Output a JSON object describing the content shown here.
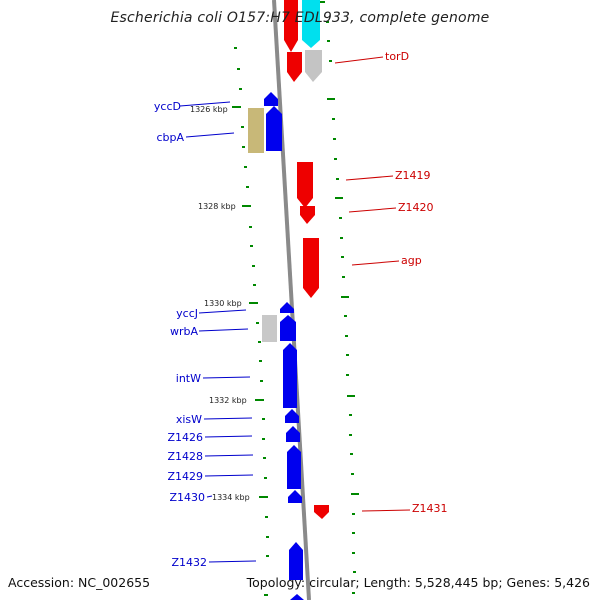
{
  "title": "Escherichia coli O157:H7 EDL933, complete genome",
  "footer": {
    "accession": "Accession: NC_002655",
    "summary": "Topology: circular; Length: 5,528,445 bp; Genes: 5,426"
  },
  "colors": {
    "forward_gene": "#0000ee",
    "reverse_gene": "#ee0000",
    "grey_gene": "#c8c8c8",
    "olive_gene": "#c8b878",
    "cyan_gene": "#00e0ee",
    "backbone": "#888888",
    "tick": "#008800",
    "left_label": "#0000cc",
    "right_label": "#cc0000"
  },
  "scale_labels": [
    "1326 kbp",
    "1328 kbp",
    "1330 kbp",
    "1332 kbp",
    "1334 kbp"
  ],
  "genes": [
    {
      "name": "torD",
      "strand": "reverse",
      "color": "grey_gene"
    },
    {
      "name": "torD",
      "strand": "reverse",
      "color": "reverse_gene"
    },
    {
      "name": "yccD",
      "strand": "forward",
      "color": "forward_gene"
    },
    {
      "name": "cbpA",
      "strand": "forward",
      "color": "forward_gene"
    },
    {
      "name": "cbpA",
      "strand": "forward",
      "color": "olive_gene"
    },
    {
      "name": "Z1419",
      "strand": "reverse",
      "color": "reverse_gene"
    },
    {
      "name": "Z1420",
      "strand": "reverse",
      "color": "reverse_gene"
    },
    {
      "name": "agp",
      "strand": "reverse",
      "color": "reverse_gene"
    },
    {
      "name": "yccJ",
      "strand": "forward",
      "color": "forward_gene"
    },
    {
      "name": "wrbA",
      "strand": "forward",
      "color": "forward_gene"
    },
    {
      "name": "wrbA",
      "strand": "forward",
      "color": "grey_gene"
    },
    {
      "name": "intW",
      "strand": "forward",
      "color": "forward_gene"
    },
    {
      "name": "xisW",
      "strand": "forward",
      "color": "forward_gene"
    },
    {
      "name": "Z1426",
      "strand": "forward",
      "color": "forward_gene"
    },
    {
      "name": "Z1428",
      "strand": "forward",
      "color": "forward_gene"
    },
    {
      "name": "Z1429",
      "strand": "forward",
      "color": "forward_gene"
    },
    {
      "name": "Z1430",
      "strand": "forward",
      "color": "forward_gene"
    },
    {
      "name": "Z1431",
      "strand": "reverse",
      "color": "reverse_gene"
    },
    {
      "name": "Z1432",
      "strand": "forward",
      "color": "forward_gene"
    }
  ],
  "left_labels": [
    "yccD",
    "cbpA",
    "yccJ",
    "wrbA",
    "intW",
    "xisW",
    "Z1426",
    "Z1428",
    "Z1429",
    "Z1430",
    "Z1432"
  ],
  "right_labels": [
    "torD",
    "Z1419",
    "Z1420",
    "agp",
    "Z1431"
  ]
}
